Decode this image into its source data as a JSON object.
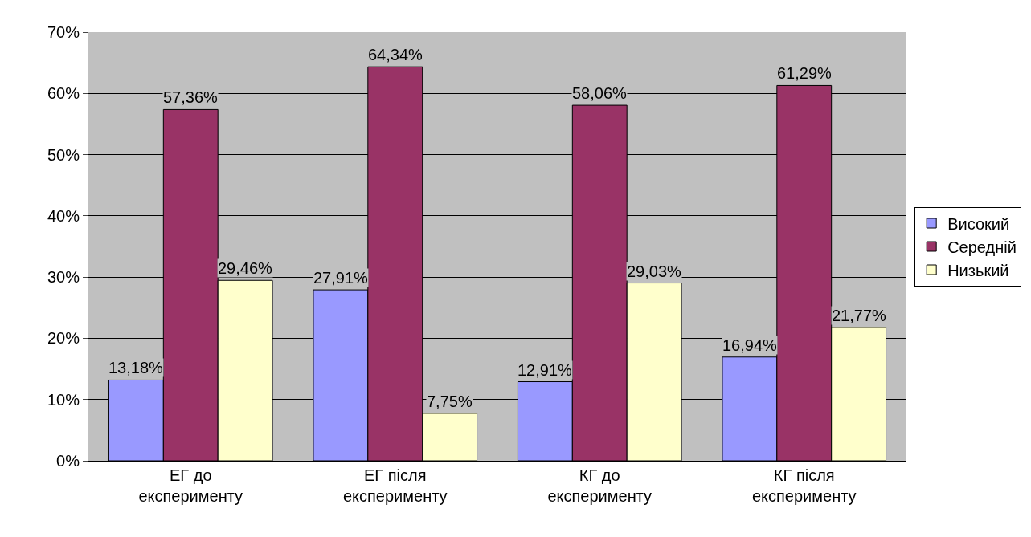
{
  "chart_data": {
    "type": "bar",
    "categories": [
      "ЕГ до\nексперименту",
      "ЕГ після\nексперименту",
      "КГ до\nексперименту",
      "КГ після\nексперименту"
    ],
    "series": [
      {
        "name": "Високий",
        "color": "#9999ff",
        "values": [
          13.18,
          27.91,
          12.91,
          16.94
        ],
        "value_labels": [
          "13,18%",
          "27,91%",
          "12,91%",
          "16,94%"
        ]
      },
      {
        "name": "Середній",
        "color": "#993366",
        "values": [
          57.36,
          64.34,
          58.06,
          61.29
        ],
        "value_labels": [
          "57,36%",
          "64,34%",
          "58,06%",
          "61,29%"
        ]
      },
      {
        "name": "Низький",
        "color": "#ffffcc",
        "values": [
          29.46,
          7.75,
          29.03,
          21.77
        ],
        "value_labels": [
          "29,46%",
          "7,75%",
          "29,03%",
          "21,77%"
        ]
      }
    ],
    "ylim": [
      0,
      70
    ],
    "yticks": [
      {
        "value": 0,
        "label": "0%"
      },
      {
        "value": 10,
        "label": "10%"
      },
      {
        "value": 20,
        "label": "20%"
      },
      {
        "value": 30,
        "label": "30%"
      },
      {
        "value": 40,
        "label": "40%"
      },
      {
        "value": 50,
        "label": "50%"
      },
      {
        "value": 60,
        "label": "60%"
      },
      {
        "value": 70,
        "label": "70%"
      }
    ],
    "grid": "y",
    "legend": "right"
  }
}
